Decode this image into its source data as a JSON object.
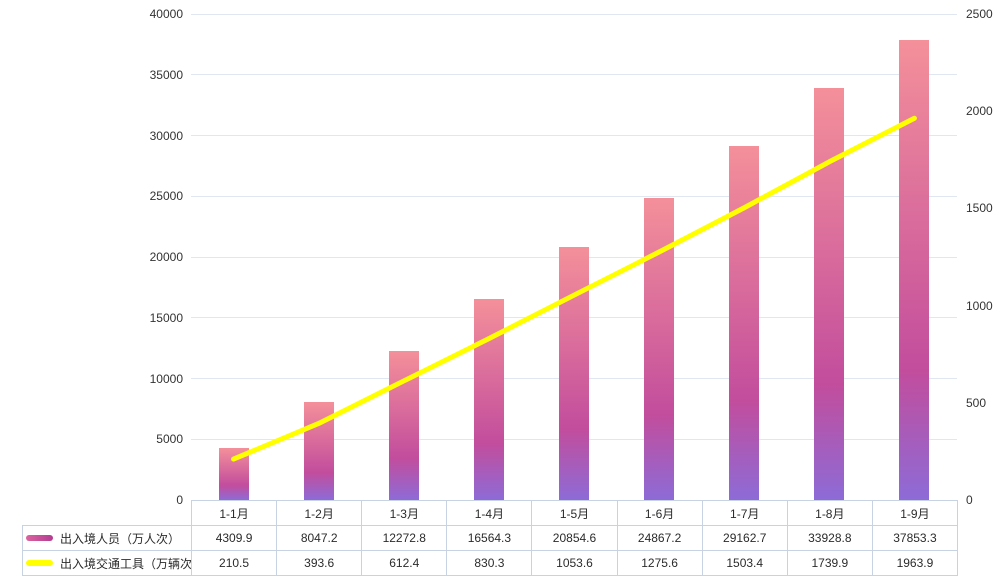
{
  "style": {
    "background": "#ffffff",
    "text_color": "#333333",
    "gridline_color": "#e1e7f1",
    "table_border_color": "#c7d2e3",
    "bar_gradient_colors": [
      "#F4909A",
      "#C24D9D",
      "#8D6BD7"
    ],
    "bar_gradient_stops": [
      0,
      0.72,
      1
    ],
    "line_color": "#FFFF00",
    "legend_bar_swatch": [
      "#DB639F",
      "#B43C92"
    ],
    "legend_line_swatch": "#FFFF00"
  },
  "chart_data": {
    "type": "bar",
    "combo": "bar+line dual y-axis with bottom data table legend",
    "title": "",
    "categories": [
      "1-1月",
      "1-2月",
      "1-3月",
      "1-4月",
      "1-5月",
      "1-6月",
      "1-7月",
      "1-8月",
      "1-9月"
    ],
    "series": [
      {
        "name": "出入境人员（万人次）",
        "type": "bar",
        "yaxis": "left",
        "values": [
          4309.9,
          8047.2,
          12272.8,
          16564.3,
          20854.6,
          24867.2,
          29162.7,
          33928.8,
          37853.3
        ]
      },
      {
        "name": "出入境交通工具（万辆次）",
        "type": "line",
        "yaxis": "right",
        "values": [
          210.5,
          393.6,
          612.4,
          830.3,
          1053.6,
          1275.6,
          1503.4,
          1739.9,
          1963.9
        ]
      }
    ],
    "left_axis": {
      "min": 0,
      "max": 40000,
      "step": 5000
    },
    "right_axis": {
      "min": 0,
      "max": 2500,
      "step": 500
    },
    "grid": true,
    "legend_position": "bottom-table"
  }
}
